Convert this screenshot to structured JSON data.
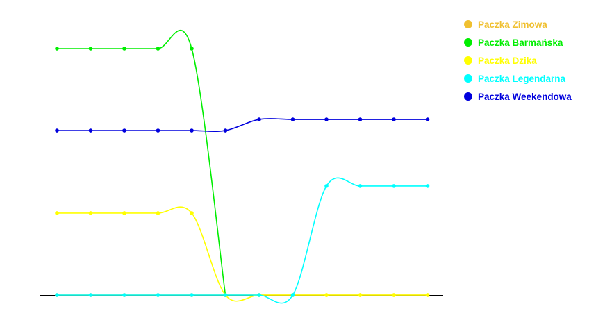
{
  "chart_data": {
    "type": "line",
    "title": "",
    "xlabel": "",
    "ylabel": "",
    "x": [
      1,
      2,
      3,
      4,
      5,
      6,
      7,
      8,
      9,
      10,
      11,
      12
    ],
    "ylim": [
      0,
      4.5
    ],
    "grid": false,
    "legend_position": "top-right",
    "series": [
      {
        "name": "Paczka Zimowa",
        "color": "#f0c030",
        "values": [
          0,
          0,
          0,
          0,
          0,
          0,
          0,
          0,
          0,
          0,
          0,
          0
        ]
      },
      {
        "name": "Paczka Barmańska",
        "color": "#00ee00",
        "values": [
          4,
          4,
          4,
          4,
          4,
          0,
          null,
          null,
          null,
          null,
          null,
          null
        ]
      },
      {
        "name": "Paczka Dzika",
        "color": "#ffff00",
        "values": [
          1.33,
          1.33,
          1.33,
          1.33,
          1.33,
          0,
          0,
          0,
          0,
          0,
          0,
          0
        ]
      },
      {
        "name": "Paczka Legendarna",
        "color": "#00ffff",
        "values": [
          0,
          0,
          0,
          0,
          0,
          0,
          0,
          0,
          1.77,
          1.77,
          1.77,
          1.77
        ]
      },
      {
        "name": "Paczka Weekendowa",
        "color": "#0000dd",
        "values": [
          2.67,
          2.67,
          2.67,
          2.67,
          2.67,
          2.67,
          2.85,
          2.85,
          2.85,
          2.85,
          2.85,
          2.85
        ]
      }
    ]
  }
}
